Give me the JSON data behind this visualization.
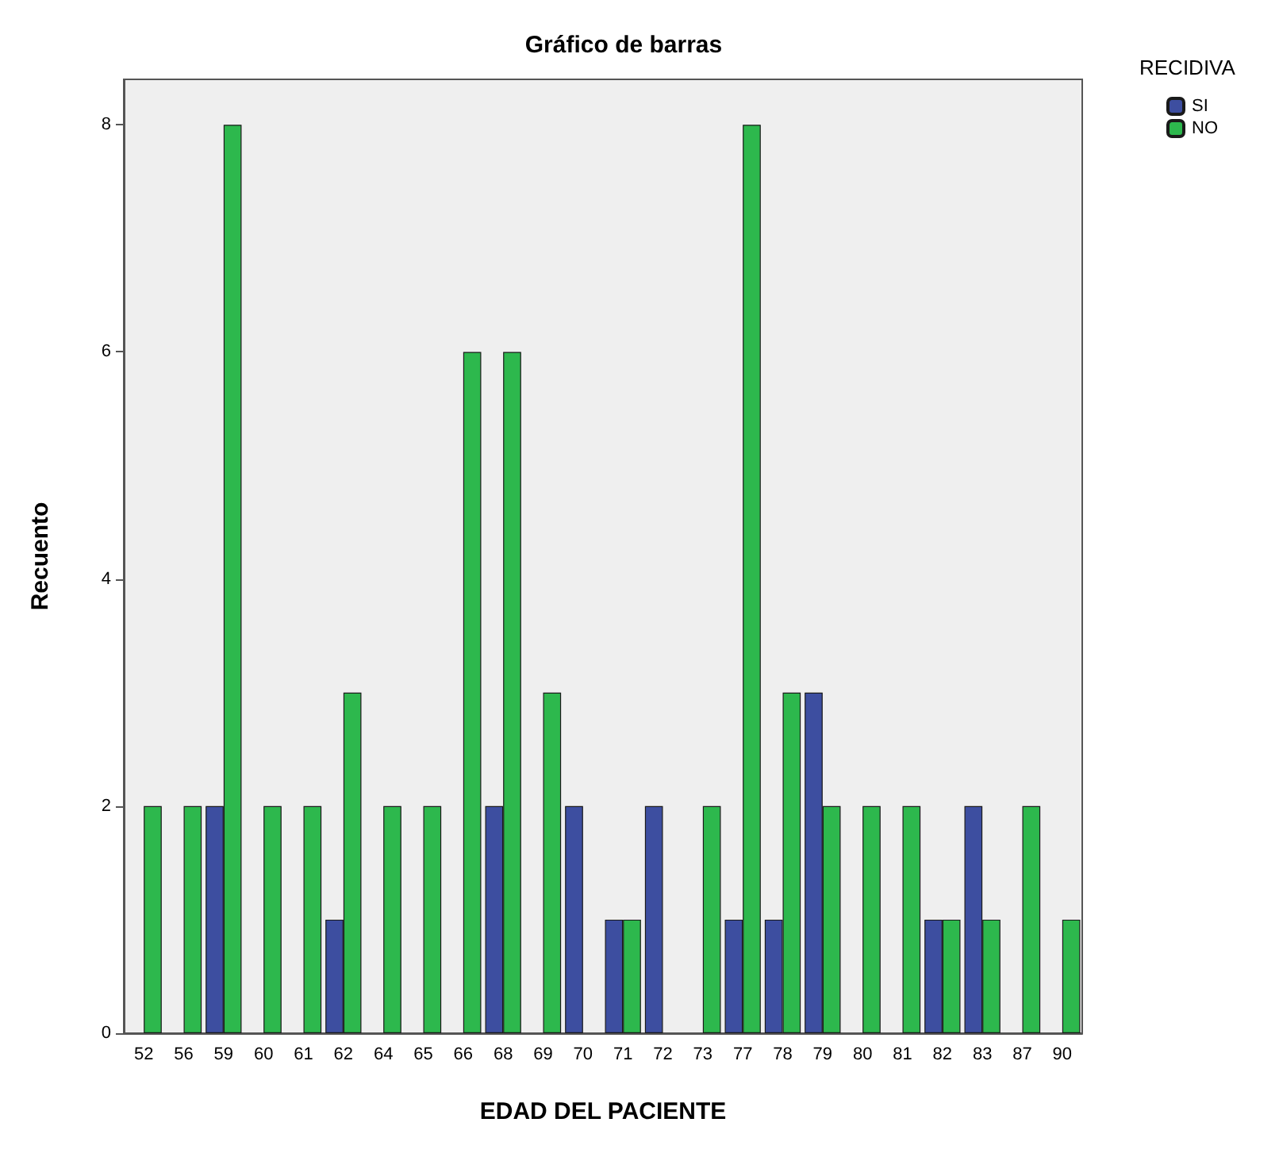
{
  "chart_data": {
    "type": "bar",
    "title": "Gráfico de barras",
    "xlabel": "EDAD DEL PACIENTE",
    "ylabel": "Recuento",
    "legend_title": "RECIDIVA",
    "legend": "top right",
    "grid": false,
    "categories": [
      "52",
      "56",
      "59",
      "60",
      "61",
      "62",
      "64",
      "65",
      "66",
      "68",
      "69",
      "70",
      "71",
      "72",
      "73",
      "77",
      "78",
      "79",
      "80",
      "81",
      "82",
      "83",
      "87",
      "90"
    ],
    "series": [
      {
        "name": "SI",
        "color": "#3d4ea0",
        "values": [
          null,
          null,
          2,
          null,
          null,
          1,
          null,
          null,
          null,
          2,
          null,
          2,
          1,
          2,
          null,
          1,
          1,
          3,
          null,
          null,
          1,
          2,
          null,
          null
        ]
      },
      {
        "name": "NO",
        "color": "#2db84d",
        "values": [
          2,
          2,
          8,
          2,
          2,
          3,
          2,
          2,
          6,
          6,
          3,
          null,
          1,
          null,
          2,
          8,
          3,
          2,
          2,
          2,
          1,
          1,
          2,
          1
        ]
      }
    ],
    "ylim": [
      0,
      8.4
    ],
    "yticks": [
      0,
      2,
      4,
      6,
      8
    ]
  }
}
